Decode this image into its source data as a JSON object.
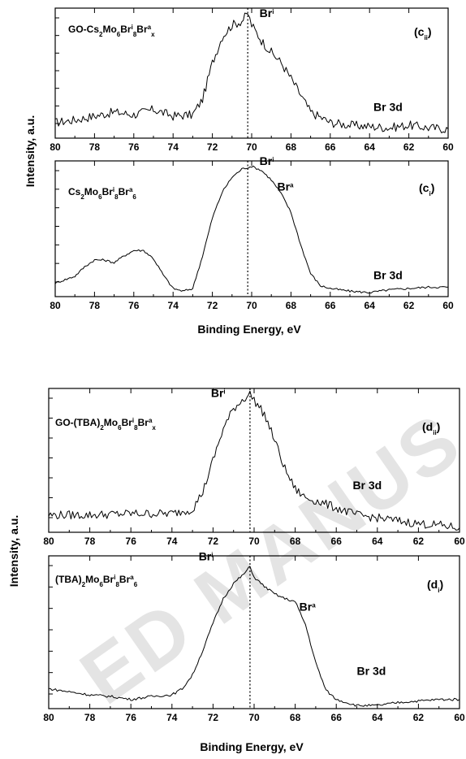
{
  "chart_data": [
    {
      "type": "line",
      "panel_label": "(cᵢᵢ)",
      "tag_main": "c",
      "tag_sub": "ii",
      "title": "GO-Cs₂Mo₆Brⁱ₈Brᵃₓ",
      "title_parts": [
        [
          "GO-Cs",
          ""
        ],
        [
          "2",
          "sub"
        ],
        [
          "Mo",
          ""
        ],
        [
          "6",
          "sub"
        ],
        [
          "Br",
          ""
        ],
        [
          "i",
          "sup"
        ],
        [
          "8",
          "sub"
        ],
        [
          "Br",
          ""
        ],
        [
          "a",
          "sup"
        ],
        [
          "x",
          "sub"
        ]
      ],
      "xlabel": "",
      "ylabel": "",
      "xlim": [
        80,
        60
      ],
      "ylim": [
        0,
        1
      ],
      "x_ticks": [
        80,
        78,
        76,
        74,
        72,
        70,
        68,
        66,
        64,
        62,
        60
      ],
      "dotted_line_x": 70.2,
      "series": [
        {
          "x": [
            80,
            79,
            78,
            77,
            76,
            75,
            74,
            73,
            72.5,
            72,
            71.5,
            71,
            70.5,
            70.2,
            70,
            69.5,
            69,
            68.5,
            68,
            67.5,
            67,
            66,
            65,
            64,
            63,
            62,
            61,
            60
          ],
          "y": [
            0.12,
            0.14,
            0.17,
            0.2,
            0.18,
            0.22,
            0.17,
            0.18,
            0.3,
            0.58,
            0.78,
            0.87,
            0.9,
            0.96,
            0.87,
            0.75,
            0.66,
            0.58,
            0.46,
            0.33,
            0.2,
            0.12,
            0.1,
            0.09,
            0.08,
            0.1,
            0.08,
            0.07
          ],
          "noise": 0.035
        }
      ],
      "annotations": [
        {
          "text": "Br",
          "sup": "i",
          "x": 69.6,
          "y": 0.93
        },
        {
          "text": "Br 3d",
          "x": 63.8,
          "y": 0.21
        }
      ]
    },
    {
      "type": "line",
      "panel_label": "(cᵢ)",
      "tag_main": "c",
      "tag_sub": "i",
      "title": "Cs₂Mo₆Brⁱ₈Brᵃ₆",
      "title_parts": [
        [
          "Cs",
          ""
        ],
        [
          "2",
          "sub"
        ],
        [
          "Mo",
          ""
        ],
        [
          "6",
          "sub"
        ],
        [
          "Br",
          ""
        ],
        [
          "i",
          "sup"
        ],
        [
          "8",
          "sub"
        ],
        [
          "Br",
          ""
        ],
        [
          "a",
          "sup"
        ],
        [
          "6",
          "sub"
        ]
      ],
      "xlabel": "",
      "ylabel": "",
      "xlim": [
        80,
        60
      ],
      "ylim": [
        0,
        1
      ],
      "x_ticks": [
        80,
        78,
        76,
        74,
        72,
        70,
        68,
        66,
        64,
        62,
        60
      ],
      "dotted_line_x": 70.2,
      "series": [
        {
          "x": [
            80,
            79,
            78.5,
            78,
            77.5,
            77,
            76.5,
            76,
            75.5,
            75,
            74.5,
            74,
            73.5,
            73,
            72.5,
            72,
            71.5,
            71,
            70.5,
            70,
            69.5,
            69,
            68.5,
            68,
            67.5,
            67,
            66.5,
            66,
            65,
            64,
            63,
            62,
            61,
            60
          ],
          "y": [
            0.1,
            0.15,
            0.22,
            0.27,
            0.27,
            0.25,
            0.3,
            0.34,
            0.34,
            0.28,
            0.16,
            0.06,
            0.04,
            0.06,
            0.3,
            0.58,
            0.77,
            0.88,
            0.94,
            0.96,
            0.93,
            0.86,
            0.76,
            0.62,
            0.38,
            0.17,
            0.08,
            0.06,
            0.04,
            0.03,
            0.05,
            0.06,
            0.07,
            0.07
          ],
          "noise": 0.008
        }
      ],
      "annotations": [
        {
          "text": "Br",
          "sup": "i",
          "x": 69.6,
          "y": 0.97
        },
        {
          "text": "Br",
          "sup": "a",
          "x": 68.7,
          "y": 0.78
        },
        {
          "text": "Br 3d",
          "x": 63.8,
          "y": 0.13
        }
      ]
    },
    {
      "type": "line",
      "panel_label": "(dᵢᵢ)",
      "tag_main": "d",
      "tag_sub": "ii",
      "title": "GO-(TBA)₂Mo₆Brⁱ₈Brᵃₓ",
      "title_parts": [
        [
          "GO-(TBA)",
          ""
        ],
        [
          "2",
          "sub"
        ],
        [
          "Mo",
          ""
        ],
        [
          "6",
          "sub"
        ],
        [
          "Br",
          ""
        ],
        [
          "i",
          "sup"
        ],
        [
          "8",
          "sub"
        ],
        [
          "Br",
          ""
        ],
        [
          "a",
          "sup"
        ],
        [
          "x",
          "sub"
        ]
      ],
      "xlabel": "",
      "ylabel": "",
      "xlim": [
        80,
        60
      ],
      "ylim": [
        0,
        1
      ],
      "x_ticks": [
        80,
        78,
        76,
        74,
        72,
        70,
        68,
        66,
        64,
        62,
        60
      ],
      "dotted_line_x": 70.2,
      "series": [
        {
          "x": [
            80,
            78,
            76,
            74,
            73,
            72.5,
            72,
            71.5,
            71,
            70.5,
            70.2,
            70,
            69.5,
            69,
            68.5,
            68,
            67.5,
            67,
            66,
            65,
            64,
            63,
            62,
            61,
            60
          ],
          "y": [
            0.12,
            0.12,
            0.13,
            0.13,
            0.16,
            0.28,
            0.5,
            0.72,
            0.86,
            0.93,
            0.96,
            0.92,
            0.82,
            0.64,
            0.44,
            0.3,
            0.24,
            0.22,
            0.17,
            0.12,
            0.1,
            0.08,
            0.06,
            0.05,
            0.03
          ],
          "noise": 0.03
        }
      ],
      "annotations": [
        {
          "text": "Br",
          "sup": "i",
          "x": 72.1,
          "y": 0.94
        },
        {
          "text": "Br 3d",
          "x": 65.2,
          "y": 0.3
        }
      ]
    },
    {
      "type": "line",
      "panel_label": "(dᵢ)",
      "tag_main": "d",
      "tag_sub": "i",
      "title": "(TBA)₂Mo₆Brⁱ₈Brᵃ₆",
      "title_parts": [
        [
          "(TBA)",
          ""
        ],
        [
          "2",
          "sub"
        ],
        [
          "Mo",
          ""
        ],
        [
          "6",
          "sub"
        ],
        [
          "Br",
          ""
        ],
        [
          "i",
          "sup"
        ],
        [
          "8",
          "sub"
        ],
        [
          "Br",
          ""
        ],
        [
          "a",
          "sup"
        ],
        [
          "6",
          "sub"
        ]
      ],
      "xlabel": "",
      "ylabel": "",
      "xlim": [
        80,
        60
      ],
      "ylim": [
        0,
        1
      ],
      "x_ticks": [
        80,
        78,
        76,
        74,
        72,
        70,
        68,
        66,
        64,
        62,
        60
      ],
      "dotted_line_x": 70.2,
      "series": [
        {
          "x": [
            80,
            79,
            78,
            77,
            76,
            75,
            74,
            73.5,
            73,
            72.5,
            72,
            71.5,
            71,
            70.5,
            70.2,
            70,
            69.5,
            69,
            68.5,
            68,
            67.5,
            67,
            66.5,
            66,
            65,
            64,
            63,
            62,
            61,
            60
          ],
          "y": [
            0.13,
            0.11,
            0.09,
            0.08,
            0.06,
            0.08,
            0.09,
            0.13,
            0.22,
            0.38,
            0.56,
            0.72,
            0.82,
            0.88,
            0.93,
            0.86,
            0.8,
            0.75,
            0.72,
            0.7,
            0.55,
            0.3,
            0.12,
            0.06,
            0.02,
            0.02,
            0.04,
            0.05,
            0.06,
            0.06
          ],
          "noise": 0.008
        }
      ],
      "annotations": [
        {
          "text": "Br",
          "sup": "i",
          "x": 72.7,
          "y": 0.97
        },
        {
          "text": "Br",
          "sup": "a",
          "x": 67.8,
          "y": 0.64
        },
        {
          "text": "Br 3d",
          "x": 65.0,
          "y": 0.22
        }
      ]
    }
  ],
  "tick_label_xlim": [
    80,
    60
  ],
  "y_axis_title_top": "Intensity, a.u.",
  "y_axis_title_bottom": "Intensity, a.u.",
  "x_axis_title_top": "Binding Energy, eV",
  "x_axis_title_bottom": "Binding Energy, eV",
  "watermark_text": "ED MANUS",
  "colors": {
    "line": "#000000",
    "watermark": "#cfcfcf"
  }
}
